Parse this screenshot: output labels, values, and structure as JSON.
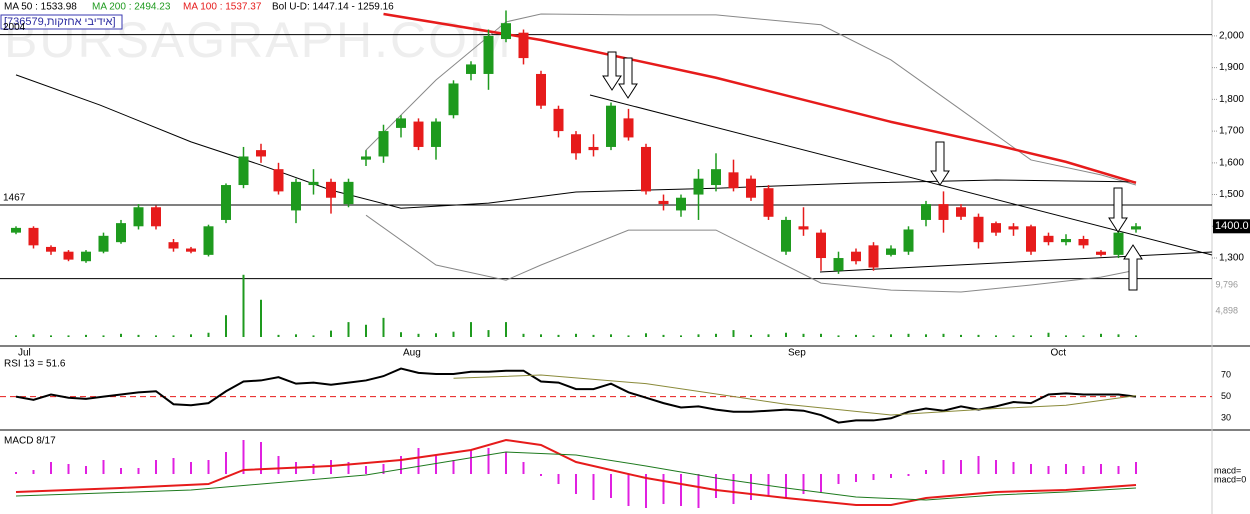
{
  "chart_data": [
    {
      "type": "candlestick",
      "title": "[736579,אידיבי אחזקות]",
      "watermark": "BURSAGRAPH.COM",
      "categories": [
        "Jul",
        null,
        null,
        null,
        null,
        null,
        null,
        null,
        null,
        null,
        null,
        null,
        null,
        null,
        null,
        null,
        null,
        null,
        null,
        null,
        null,
        null,
        "Aug",
        null,
        null,
        null,
        null,
        null,
        null,
        null,
        null,
        null,
        null,
        null,
        null,
        null,
        null,
        null,
        null,
        null,
        null,
        null,
        null,
        null,
        "Sep",
        null,
        null,
        null,
        null,
        null,
        null,
        null,
        null,
        null,
        null,
        null,
        null,
        null,
        null,
        "Oct",
        null,
        null,
        null,
        null,
        null
      ],
      "open": [
        1380,
        1395,
        1335,
        1320,
        1290,
        1320,
        1350,
        1400,
        1460,
        1350,
        1330,
        1310,
        1420,
        1530,
        1640,
        1580,
        1450,
        1530,
        1540,
        1470,
        1610,
        1620,
        1710,
        1730,
        1650,
        1750,
        1880,
        1880,
        1990,
        2010,
        1880,
        1770,
        1690,
        1650,
        1650,
        1740,
        1650,
        1480,
        1450,
        1500,
        1530,
        1570,
        1550,
        1520,
        1320,
        1400,
        1380,
        1260,
        1320,
        1340,
        1310,
        1320,
        1420,
        1470,
        1460,
        1430,
        1410,
        1400,
        1400,
        1370,
        1350,
        1360,
        1320,
        1310,
        1390
      ],
      "high": [
        1400,
        1400,
        1340,
        1325,
        1325,
        1380,
        1420,
        1470,
        1465,
        1360,
        1335,
        1405,
        1535,
        1650,
        1660,
        1600,
        1550,
        1580,
        1550,
        1550,
        1640,
        1720,
        1750,
        1740,
        1740,
        1860,
        1920,
        2020,
        2080,
        2020,
        1890,
        1780,
        1700,
        1690,
        1790,
        1770,
        1660,
        1500,
        1500,
        1580,
        1630,
        1610,
        1560,
        1530,
        1430,
        1460,
        1390,
        1320,
        1330,
        1350,
        1340,
        1400,
        1480,
        1510,
        1470,
        1440,
        1415,
        1410,
        1405,
        1380,
        1375,
        1370,
        1325,
        1390,
        1410
      ],
      "low": [
        1375,
        1330,
        1310,
        1290,
        1285,
        1315,
        1345,
        1390,
        1390,
        1320,
        1315,
        1305,
        1410,
        1520,
        1600,
        1500,
        1410,
        1500,
        1440,
        1460,
        1590,
        1600,
        1680,
        1640,
        1610,
        1740,
        1860,
        1830,
        1980,
        1910,
        1770,
        1680,
        1610,
        1620,
        1640,
        1670,
        1500,
        1450,
        1430,
        1420,
        1510,
        1510,
        1480,
        1420,
        1310,
        1370,
        1260,
        1250,
        1280,
        1260,
        1305,
        1310,
        1400,
        1380,
        1420,
        1330,
        1370,
        1370,
        1310,
        1340,
        1340,
        1330,
        1305,
        1300,
        1380
      ],
      "close": [
        1395,
        1340,
        1320,
        1295,
        1320,
        1370,
        1410,
        1460,
        1400,
        1330,
        1320,
        1400,
        1530,
        1620,
        1620,
        1510,
        1540,
        1540,
        1490,
        1540,
        1620,
        1700,
        1740,
        1650,
        1730,
        1850,
        1910,
        2000,
        2040,
        1930,
        1780,
        1700,
        1630,
        1640,
        1780,
        1680,
        1510,
        1470,
        1490,
        1550,
        1580,
        1520,
        1490,
        1430,
        1420,
        1390,
        1300,
        1300,
        1290,
        1270,
        1330,
        1390,
        1470,
        1420,
        1430,
        1350,
        1380,
        1390,
        1320,
        1350,
        1360,
        1340,
        1310,
        1380,
        1400
      ],
      "up_color": "#1e9a1e",
      "down_color": "#e61b1b",
      "ylim": [
        1026,
        2113
      ],
      "yticks": [
        {
          "value": 1300,
          "label": "1,300"
        },
        {
          "value": 1400,
          "label": "1,400"
        },
        {
          "value": 1500,
          "label": "1,500"
        },
        {
          "value": 1600,
          "label": "1,600"
        },
        {
          "value": 1700,
          "label": "1,700"
        },
        {
          "value": 1800,
          "label": "1,800"
        },
        {
          "value": 1900,
          "label": "1,900"
        },
        {
          "value": 2000,
          "label": "2,000"
        }
      ],
      "series": [
        {
          "name": "MA 50 : 1533.98",
          "color": "#000000",
          "x": [
            0,
            4.8,
            10,
            14,
            18,
            22,
            27,
            32,
            40,
            48,
            56,
            64
          ],
          "values": [
            1877,
            1782,
            1666,
            1593,
            1514,
            1457,
            1473,
            1508,
            1520,
            1536,
            1546,
            1540
          ]
        },
        {
          "name": "MA 100 : 1537.37",
          "color": "#e61b1b",
          "x": [
            21,
            30,
            40,
            50,
            56,
            60,
            64
          ],
          "values": [
            2069,
            1987,
            1868,
            1729,
            1656,
            1603,
            1537
          ]
        }
      ],
      "ma200_label": "MA 200 : 2494.23",
      "ma200_color": "#1e9a1e",
      "bollinger": {
        "name": "Bol U-D: 1447.14 - 1259.16",
        "color": "#888888",
        "x": [
          20,
          24,
          28,
          30,
          35,
          40,
          46,
          50,
          54,
          58,
          62,
          64
        ],
        "upper": [
          1640,
          1861,
          2044,
          2069,
          2066,
          2066,
          2035,
          1924,
          1767,
          1609,
          1562,
          1530
        ],
        "lower": [
          1435,
          1278,
          1230,
          1278,
          1388,
          1388,
          1221,
          1199,
          1193,
          1215,
          1240,
          1262
        ]
      },
      "levels": [
        2004,
        1467
      ],
      "support": 1235,
      "last_price": {
        "value": 1400,
        "label": "1400.0"
      },
      "volume": {
        "color": "#1e9a1e",
        "ylim": [
          0,
          12600
        ],
        "yticks": [
          {
            "value": 4898,
            "label": "4,898"
          },
          {
            "value": 9796,
            "label": "9,796"
          }
        ],
        "values": [
          300,
          500,
          300,
          300,
          400,
          300,
          600,
          400,
          300,
          300,
          500,
          800,
          4100,
          11700,
          7000,
          400,
          500,
          300,
          1200,
          2800,
          2300,
          3600,
          900,
          600,
          700,
          1000,
          2800,
          1300,
          2800,
          600,
          500,
          400,
          600,
          400,
          500,
          300,
          700,
          400,
          300,
          500,
          600,
          1300,
          400,
          500,
          800,
          600,
          600,
          300,
          400,
          300,
          500,
          600,
          500,
          600,
          400,
          400,
          300,
          300,
          300,
          800,
          300,
          300,
          600,
          500,
          300
        ]
      }
    },
    {
      "type": "line",
      "title": "RSI 13 = 51.6",
      "ylim": [
        21,
        95
      ],
      "yticks": [
        30,
        50,
        70
      ],
      "reference": 50,
      "reference_color": "#e61b1b",
      "series": [
        {
          "color": "#000000",
          "values": [
            50,
            47,
            52,
            49,
            48,
            50,
            52,
            54,
            55,
            43,
            42,
            44,
            55,
            64,
            65,
            68,
            62,
            63,
            61,
            63,
            65,
            69,
            76,
            72,
            71,
            71,
            73,
            73,
            74,
            74,
            64,
            63,
            57,
            57,
            62,
            54,
            49,
            44,
            40,
            41,
            38,
            36,
            36,
            37,
            38,
            37,
            33,
            26,
            28,
            28,
            30,
            36,
            39,
            37,
            41,
            38,
            41,
            45,
            44,
            52,
            53,
            52,
            52,
            52,
            50
          ]
        },
        {
          "color": "#8a8a3a",
          "x": [
            25,
            30,
            36,
            44,
            50,
            56,
            60,
            64
          ],
          "values": [
            67,
            70,
            62,
            43,
            33,
            39,
            42,
            51
          ]
        }
      ]
    },
    {
      "type": "bar",
      "title": "MACD 8/17",
      "right_labels": [
        "macd=",
        "macd=0"
      ],
      "ylim": [
        -40,
        42
      ],
      "histogram": {
        "color": "#e020e0",
        "values": [
          2,
          4,
          12,
          10,
          8,
          14,
          6,
          6,
          14,
          16,
          12,
          14,
          22,
          34,
          32,
          18,
          12,
          10,
          14,
          12,
          8,
          10,
          18,
          26,
          18,
          14,
          24,
          26,
          22,
          12,
          -2,
          -10,
          -20,
          -26,
          -24,
          -32,
          -34,
          -30,
          -32,
          -34,
          -24,
          -30,
          -26,
          -22,
          -24,
          -20,
          -18,
          -10,
          -8,
          -6,
          -4,
          -2,
          4,
          14,
          14,
          18,
          14,
          12,
          10,
          8,
          10,
          8,
          10,
          8,
          12
        ]
      },
      "series": [
        {
          "color": "#e61b1b",
          "x": [
            0,
            6,
            11,
            13,
            18,
            22,
            26,
            28,
            30,
            32,
            36,
            40,
            44,
            48,
            50,
            52,
            56,
            60,
            64
          ],
          "values": [
            -18,
            -14,
            -10,
            4,
            8,
            14,
            24,
            34,
            29,
            12,
            -4,
            -16,
            -24,
            -31,
            -31,
            -24,
            -18,
            -16,
            -11
          ]
        },
        {
          "color": "#1e7a1e",
          "x": [
            0,
            10,
            20,
            28,
            32,
            36,
            40,
            44,
            48,
            52,
            56,
            60,
            64
          ],
          "values": [
            -22,
            -16,
            -1,
            22,
            19,
            8,
            -4,
            -14,
            -23,
            -26,
            -21,
            -18,
            -14
          ]
        }
      ]
    }
  ]
}
